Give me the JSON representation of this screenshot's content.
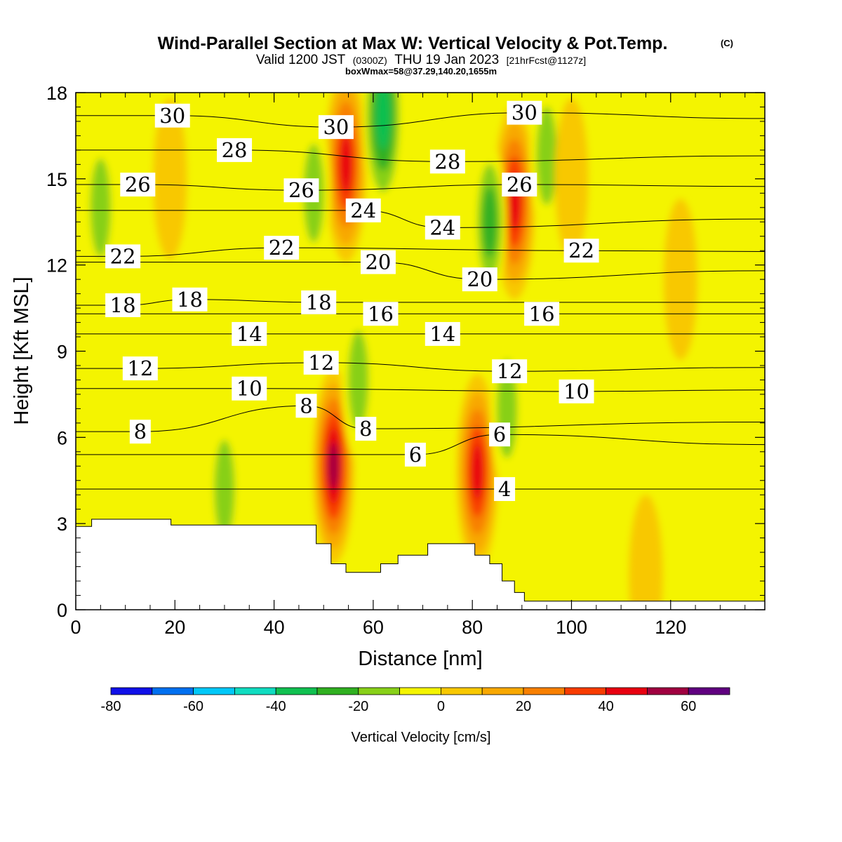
{
  "header": {
    "title": "Wind-Parallel Section at Max W: Vertical Velocity & Pot.Temp.",
    "copyright": "(C)",
    "valid_prefix": "Valid 1200 JST",
    "valid_utc": "(0300Z)",
    "valid_date": "THU 19 Jan 2023",
    "forecast": "[21hrFcst@1127z]",
    "box_info": "boxWmax=58@37.29,140.20,1655m"
  },
  "chart_data": {
    "type": "heatmap",
    "title": "Wind-Parallel Section at Max W: Vertical Velocity & Pot.Temp.",
    "xlabel": "Distance [nm]",
    "ylabel": "Height [Kft MSL]",
    "xlim": [
      0,
      139
    ],
    "ylim": [
      0,
      18
    ],
    "x_ticks": [
      "0",
      "20",
      "40",
      "60",
      "80",
      "100",
      "120"
    ],
    "y_ticks": [
      "0",
      "3",
      "6",
      "9",
      "12",
      "15",
      "18"
    ],
    "colorbar": {
      "label": "Vertical Velocity [cm/s]",
      "tick_labels": [
        "-80",
        "-60",
        "-40",
        "-20",
        "0",
        "20",
        "40",
        "60"
      ],
      "levels": [
        -80,
        -70,
        -60,
        -50,
        -40,
        -30,
        -20,
        -10,
        0,
        10,
        20,
        30,
        40,
        50,
        60,
        70
      ],
      "colors": [
        "#1010e8",
        "#0070f0",
        "#00c8f8",
        "#10dcc0",
        "#10c050",
        "#30b020",
        "#88d018",
        "#f4f400",
        "#f8c800",
        "#f8a800",
        "#f88000",
        "#f83c00",
        "#e80010",
        "#a00040",
        "#600080"
      ]
    },
    "vertical_velocity_features": [
      {
        "name": "updraft",
        "x": 52,
        "z": 5.0,
        "w": 58
      },
      {
        "name": "updraft",
        "x": 54.5,
        "z": 15.5,
        "w": 45
      },
      {
        "name": "updraft",
        "x": 81,
        "z": 4.8,
        "w": 45
      },
      {
        "name": "updraft",
        "x": 88.5,
        "z": 14.2,
        "w": 48
      },
      {
        "name": "downdraft",
        "x": 48,
        "z": 14.5,
        "w": -22
      },
      {
        "name": "downdraft",
        "x": 57,
        "z": 8.0,
        "w": -22
      },
      {
        "name": "downdraft",
        "x": 62,
        "z": 17.2,
        "w": -38
      },
      {
        "name": "downdraft",
        "x": 83.5,
        "z": 13.5,
        "w": -28
      },
      {
        "name": "downdraft",
        "x": 87,
        "z": 7.0,
        "w": -22
      },
      {
        "name": "downdraft",
        "x": 95,
        "z": 15.8,
        "w": -22
      },
      {
        "name": "downdraft",
        "x": 5,
        "z": 14.0,
        "w": -18
      },
      {
        "name": "downdraft",
        "x": 31,
        "z": 15.5,
        "w": -10
      },
      {
        "name": "downdraft",
        "x": 30,
        "z": 4.2,
        "w": -15
      },
      {
        "name": "updraft",
        "x": 19,
        "z": 15.0,
        "w": 12
      },
      {
        "name": "updraft",
        "x": 100,
        "z": 15.0,
        "w": 12
      },
      {
        "name": "updraft",
        "x": 122,
        "z": 11.5,
        "w": 10
      },
      {
        "name": "updraft",
        "x": 115,
        "z": 1.2,
        "w": 12
      }
    ],
    "potential_temperature_contour_labels": [
      {
        "value": "30",
        "x": 19.5,
        "z": 17.2
      },
      {
        "value": "30",
        "x": 52.5,
        "z": 16.8
      },
      {
        "value": "30",
        "x": 90.5,
        "z": 17.3
      },
      {
        "value": "28",
        "x": 32,
        "z": 16.0
      },
      {
        "value": "28",
        "x": 75,
        "z": 15.6
      },
      {
        "value": "26",
        "x": 12.5,
        "z": 14.8
      },
      {
        "value": "26",
        "x": 45.5,
        "z": 14.6
      },
      {
        "value": "26",
        "x": 89.5,
        "z": 14.8
      },
      {
        "value": "24",
        "x": 58,
        "z": 13.9
      },
      {
        "value": "24",
        "x": 74,
        "z": 13.3
      },
      {
        "value": "22",
        "x": 9.5,
        "z": 12.3
      },
      {
        "value": "22",
        "x": 41.5,
        "z": 12.6
      },
      {
        "value": "22",
        "x": 102,
        "z": 12.5
      },
      {
        "value": "20",
        "x": 61,
        "z": 12.1
      },
      {
        "value": "20",
        "x": 81.5,
        "z": 11.5
      },
      {
        "value": "18",
        "x": 9.5,
        "z": 10.6
      },
      {
        "value": "18",
        "x": 23,
        "z": 10.8
      },
      {
        "value": "18",
        "x": 49,
        "z": 10.7
      },
      {
        "value": "16",
        "x": 61.5,
        "z": 10.3
      },
      {
        "value": "16",
        "x": 94,
        "z": 10.3
      },
      {
        "value": "14",
        "x": 35,
        "z": 9.6
      },
      {
        "value": "14",
        "x": 74,
        "z": 9.6
      },
      {
        "value": "12",
        "x": 13,
        "z": 8.4
      },
      {
        "value": "12",
        "x": 49.5,
        "z": 8.6
      },
      {
        "value": "12",
        "x": 87.5,
        "z": 8.3
      },
      {
        "value": "10",
        "x": 35,
        "z": 7.7
      },
      {
        "value": "10",
        "x": 101,
        "z": 7.6
      },
      {
        "value": "8",
        "x": 13,
        "z": 6.2
      },
      {
        "value": "8",
        "x": 46.5,
        "z": 7.1
      },
      {
        "value": "8",
        "x": 58.5,
        "z": 6.3
      },
      {
        "value": "6",
        "x": 68.5,
        "z": 5.4
      },
      {
        "value": "6",
        "x": 85.5,
        "z": 6.1
      },
      {
        "value": "4",
        "x": 86.5,
        "z": 4.2
      }
    ],
    "terrain": [
      [
        0,
        2.9
      ],
      [
        3.2,
        2.9
      ],
      [
        3.2,
        3.15
      ],
      [
        19.2,
        3.15
      ],
      [
        19.2,
        2.95
      ],
      [
        48.5,
        2.95
      ],
      [
        48.5,
        2.3
      ],
      [
        51.5,
        2.3
      ],
      [
        51.5,
        1.6
      ],
      [
        54.5,
        1.6
      ],
      [
        54.5,
        1.3
      ],
      [
        61.5,
        1.3
      ],
      [
        61.5,
        1.6
      ],
      [
        65,
        1.6
      ],
      [
        65,
        1.9
      ],
      [
        71,
        1.9
      ],
      [
        71,
        2.3
      ],
      [
        80.5,
        2.3
      ],
      [
        80.5,
        1.9
      ],
      [
        83.5,
        1.9
      ],
      [
        83.5,
        1.6
      ],
      [
        86,
        1.6
      ],
      [
        86,
        1.0
      ],
      [
        88.5,
        1.0
      ],
      [
        88.5,
        0.6
      ],
      [
        90.5,
        0.6
      ],
      [
        90.5,
        0.3
      ],
      [
        139,
        0.3
      ]
    ]
  }
}
